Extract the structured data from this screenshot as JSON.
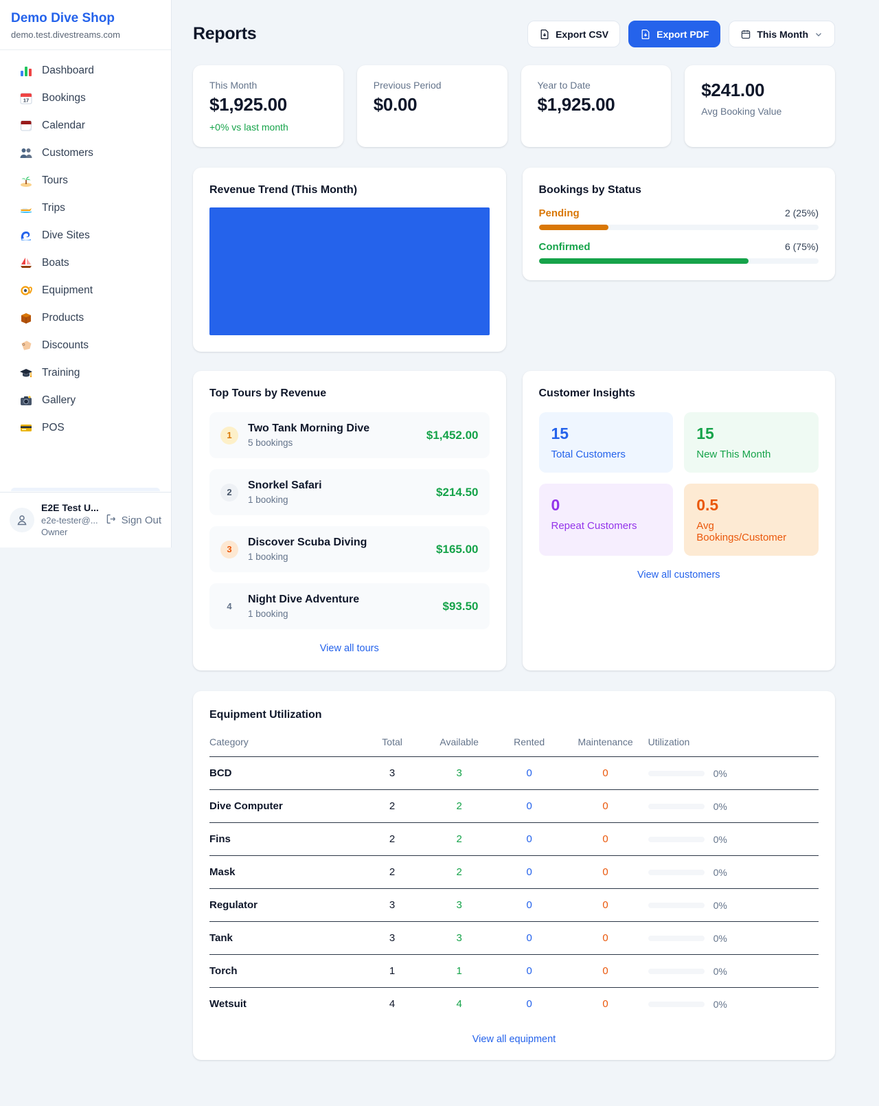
{
  "colors": {
    "accent_blue": "#2563eb",
    "green": "#16a34a",
    "pending_orange": "#d97706",
    "maintenance_orange": "#ea580c",
    "purple": "#9333ea"
  },
  "sidebar": {
    "brand": {
      "name": "Demo Dive Shop",
      "domain": "demo.test.divestreams.com"
    },
    "items": [
      {
        "icon": "dashboard-chart-icon",
        "label": "Dashboard"
      },
      {
        "icon": "bookings-calendar-icon",
        "label": "Bookings"
      },
      {
        "icon": "calendar-icon",
        "label": "Calendar"
      },
      {
        "icon": "customers-people-icon",
        "label": "Customers"
      },
      {
        "icon": "tours-island-icon",
        "label": "Tours"
      },
      {
        "icon": "trips-speedboat-icon",
        "label": "Trips"
      },
      {
        "icon": "dive-sites-wave-icon",
        "label": "Dive Sites"
      },
      {
        "icon": "boats-sailboat-icon",
        "label": "Boats"
      },
      {
        "icon": "equipment-mask-icon",
        "label": "Equipment"
      },
      {
        "icon": "products-box-icon",
        "label": "Products"
      },
      {
        "icon": "discounts-tag-icon",
        "label": "Discounts"
      },
      {
        "icon": "training-gradcap-icon",
        "label": "Training"
      },
      {
        "icon": "gallery-camera-icon",
        "label": "Gallery"
      },
      {
        "icon": "pos-card-icon",
        "label": "POS"
      }
    ],
    "user": {
      "name": "E2E Test U...",
      "email": "e2e-tester@...",
      "role": "Owner",
      "sign_out": "Sign Out"
    }
  },
  "header": {
    "title": "Reports",
    "export_csv": "Export CSV",
    "export_pdf": "Export PDF",
    "period": "This Month"
  },
  "stats": [
    {
      "label": "This Month",
      "value": "$1,925.00",
      "delta": "+0% vs last month"
    },
    {
      "label": "Previous Period",
      "value": "$0.00"
    },
    {
      "label": "Year to Date",
      "value": "$1,925.00"
    },
    {
      "label": "Avg Booking Value",
      "value": "$241.00"
    }
  ],
  "revenue_trend": {
    "title": "Revenue Trend (This Month)"
  },
  "chart_data": [
    {
      "type": "bar",
      "title": "Revenue Trend (This Month)",
      "categories": [
        "This Month"
      ],
      "values": [
        1925
      ],
      "bar_color": "#2563eb",
      "note_layout": "single bar filling entire plot area, no axes or gridlines"
    },
    {
      "type": "bar",
      "title": "Bookings by Status",
      "categories": [
        "Pending",
        "Confirmed"
      ],
      "values": [
        2,
        6
      ],
      "percent": [
        25,
        75
      ],
      "colors": [
        "#d97706",
        "#16a34a"
      ]
    }
  ],
  "bookings_by_status": {
    "title": "Bookings by Status",
    "rows": [
      {
        "label": "Pending",
        "value": "2 (25%)",
        "pct": 25
      },
      {
        "label": "Confirmed",
        "value": "6 (75%)",
        "pct": 75
      }
    ]
  },
  "top_tours": {
    "title": "Top Tours by Revenue",
    "items": [
      {
        "rank": "1",
        "name": "Two Tank Morning Dive",
        "bookings": "5 bookings",
        "revenue": "$1,452.00"
      },
      {
        "rank": "2",
        "name": "Snorkel Safari",
        "bookings": "1 booking",
        "revenue": "$214.50"
      },
      {
        "rank": "3",
        "name": "Discover Scuba Diving",
        "bookings": "1 booking",
        "revenue": "$165.00"
      },
      {
        "rank": "4",
        "name": "Night Dive Adventure",
        "bookings": "1 booking",
        "revenue": "$93.50"
      }
    ],
    "view_all": "View all tours"
  },
  "customer_insights": {
    "title": "Customer Insights",
    "tiles": [
      {
        "value": "15",
        "label": "Total Customers"
      },
      {
        "value": "15",
        "label": "New This Month"
      },
      {
        "value": "0",
        "label": "Repeat Customers"
      },
      {
        "value": "0.5",
        "label": "Avg Bookings/Customer"
      }
    ],
    "view_all": "View all customers"
  },
  "equipment": {
    "title": "Equipment Utilization",
    "columns": [
      "Category",
      "Total",
      "Available",
      "Rented",
      "Maintenance",
      "Utilization"
    ],
    "rows": [
      {
        "category": "BCD",
        "total": "3",
        "available": "3",
        "rented": "0",
        "maintenance": "0",
        "utilization": "0%",
        "utilization_pct": 0
      },
      {
        "category": "Dive Computer",
        "total": "2",
        "available": "2",
        "rented": "0",
        "maintenance": "0",
        "utilization": "0%",
        "utilization_pct": 0
      },
      {
        "category": "Fins",
        "total": "2",
        "available": "2",
        "rented": "0",
        "maintenance": "0",
        "utilization": "0%",
        "utilization_pct": 0
      },
      {
        "category": "Mask",
        "total": "2",
        "available": "2",
        "rented": "0",
        "maintenance": "0",
        "utilization": "0%",
        "utilization_pct": 0
      },
      {
        "category": "Regulator",
        "total": "3",
        "available": "3",
        "rented": "0",
        "maintenance": "0",
        "utilization": "0%",
        "utilization_pct": 0
      },
      {
        "category": "Tank",
        "total": "3",
        "available": "3",
        "rented": "0",
        "maintenance": "0",
        "utilization": "0%",
        "utilization_pct": 0
      },
      {
        "category": "Torch",
        "total": "1",
        "available": "1",
        "rented": "0",
        "maintenance": "0",
        "utilization": "0%",
        "utilization_pct": 0
      },
      {
        "category": "Wetsuit",
        "total": "4",
        "available": "4",
        "rented": "0",
        "maintenance": "0",
        "utilization": "0%",
        "utilization_pct": 0
      }
    ],
    "view_all": "View all equipment"
  }
}
